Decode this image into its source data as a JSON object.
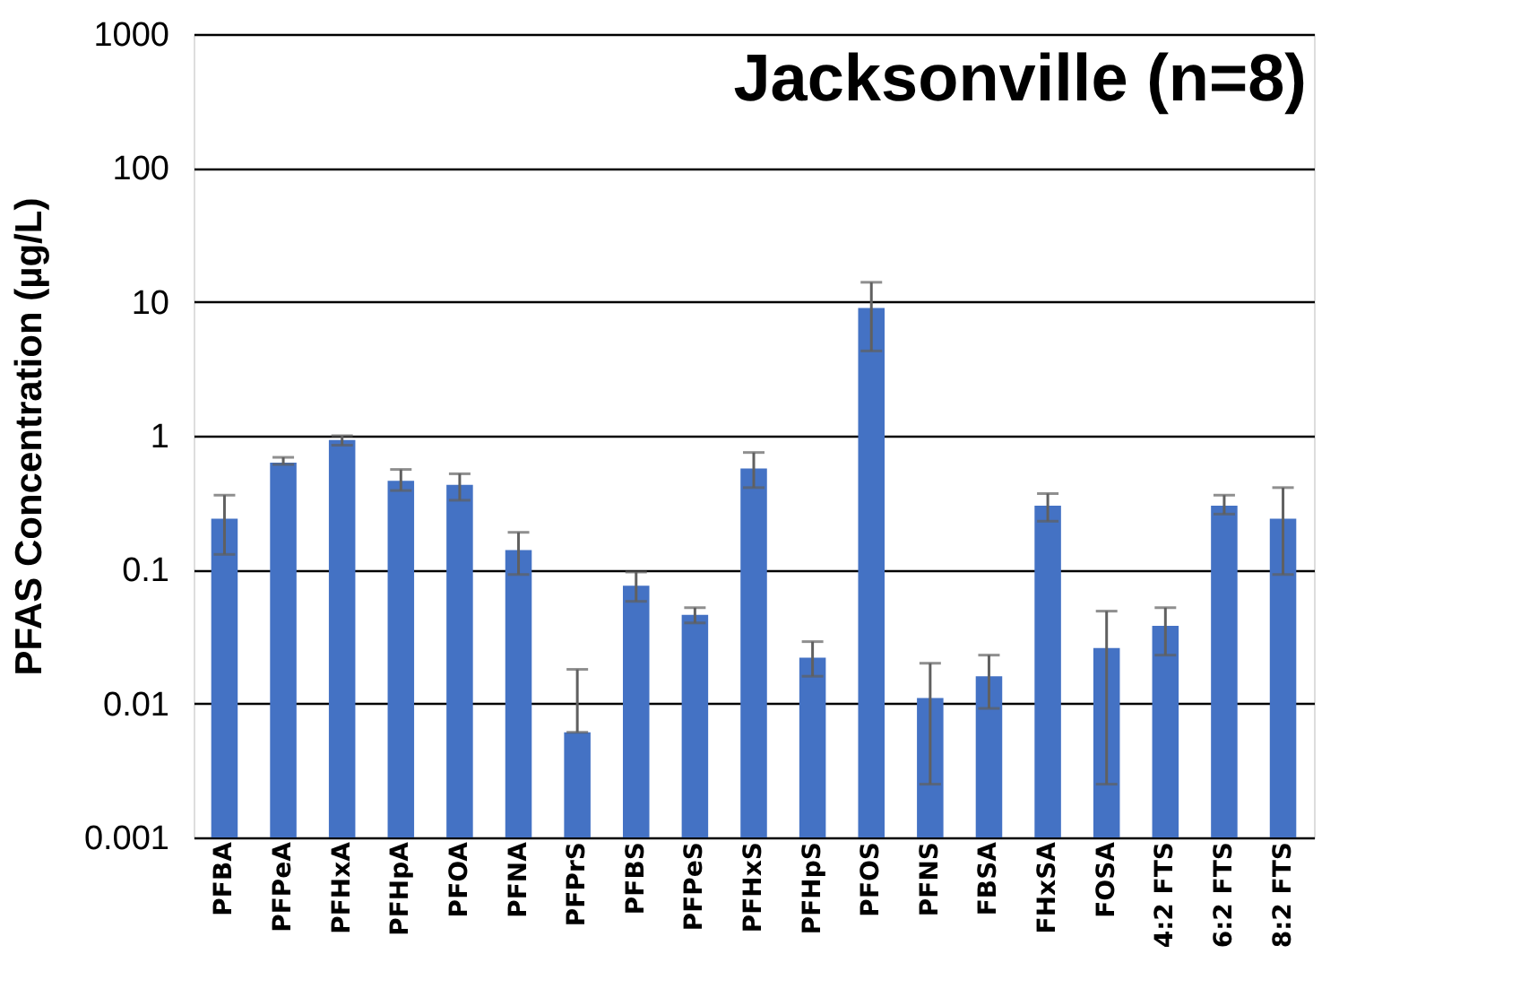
{
  "chart_data": {
    "type": "bar",
    "title": "Jacksonville (n=8)",
    "ylabel": "PFAS Concentration (µg/L)",
    "categories": [
      "PFBA",
      "PFPeA",
      "PFHxA",
      "PFHpA",
      "PFOA",
      "PFNA",
      "PFPrS",
      "PFBS",
      "PFPeS",
      "PFHxS",
      "PFHpS",
      "PFOS",
      "PFNS",
      "FBSA",
      "FHxSA",
      "FOSA",
      "4:2 FTS",
      "6:2 FTS",
      "8:2 FTS"
    ],
    "values": [
      0.24,
      0.63,
      0.93,
      0.46,
      0.43,
      0.14,
      0.0061,
      0.076,
      0.046,
      0.57,
      0.022,
      9.0,
      0.011,
      0.016,
      0.3,
      0.026,
      0.038,
      0.3,
      0.24
    ],
    "errors": [
      [
        0.13,
        0.36
      ],
      [
        0.61,
        0.69
      ],
      [
        0.85,
        1.0
      ],
      [
        0.39,
        0.56
      ],
      [
        0.33,
        0.52
      ],
      [
        0.092,
        0.19
      ],
      [
        0.0061,
        0.018
      ],
      [
        0.058,
        0.096
      ],
      [
        0.04,
        0.052
      ],
      [
        0.41,
        0.75
      ],
      [
        0.016,
        0.029
      ],
      [
        4.3,
        14
      ],
      [
        0.0025,
        0.02
      ],
      [
        0.0092,
        0.023
      ],
      [
        0.23,
        0.37
      ],
      [
        0.0025,
        0.049
      ],
      [
        0.023,
        0.052
      ],
      [
        0.26,
        0.36
      ],
      [
        0.092,
        0.41
      ]
    ],
    "color": "#4472c4",
    "log": true,
    "ylim": [
      0.001,
      1000
    ],
    "yticks": [
      0.001,
      0.01,
      0.1,
      1,
      10,
      100,
      1000
    ],
    "grid": "y"
  }
}
